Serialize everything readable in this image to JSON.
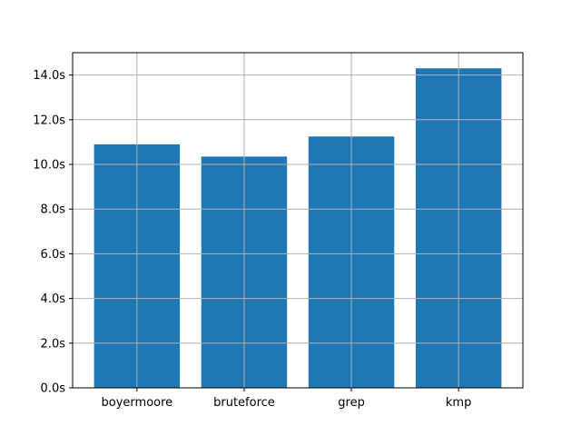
{
  "chart_data": {
    "type": "bar",
    "categories": [
      "boyermoore",
      "bruteforce",
      "grep",
      "kmp"
    ],
    "series": [
      {
        "values": [
          10.9,
          10.35,
          11.25,
          14.3
        ],
        "color": "#1f77b4"
      }
    ],
    "title": "",
    "xlabel": "",
    "ylabel": "",
    "ylim": [
      0,
      15.0
    ],
    "yticks": [
      0,
      2,
      4,
      6,
      8,
      10,
      12,
      14
    ],
    "ytick_labels": [
      "0.0s",
      "2.0s",
      "4.0s",
      "6.0s",
      "8.0s",
      "10.0s",
      "12.0s",
      "14.0s"
    ],
    "grid": true,
    "grid_color": "#b0b0b0",
    "legend": "none"
  }
}
